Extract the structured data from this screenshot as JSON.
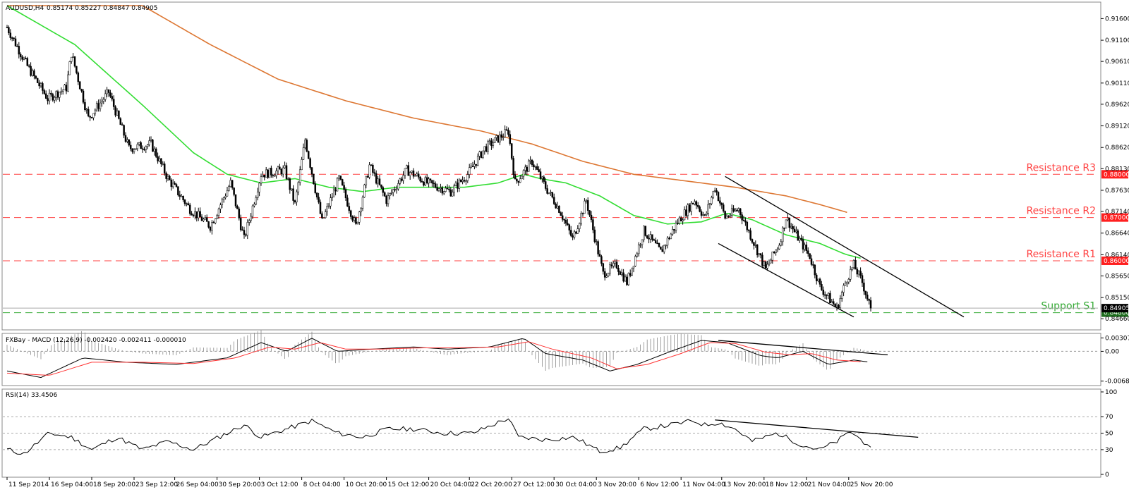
{
  "chart_data": [
    {
      "type": "candlestick",
      "title": "AUDUSD,H4",
      "ohlc_readout": "0.85174 0.85227 0.84847 0.84905",
      "price_axis": {
        "ylim": [
          0.845,
          0.919
        ],
        "ticks": [
          "0.91600",
          "0.91100",
          "0.90610",
          "0.90110",
          "0.89620",
          "0.89120",
          "0.88620",
          "0.88130",
          "0.87630",
          "0.87140",
          "0.86640",
          "0.86140",
          "0.85650",
          "0.85150",
          "0.84660"
        ]
      },
      "x_ticks": [
        "11 Sep 2014",
        "16 Sep 04:00",
        "18 Sep 20:00",
        "23 Sep 12:00",
        "26 Sep 04:00",
        "30 Sep 20:00",
        "3 Oct 12:00",
        "8 Oct 04:00",
        "10 Oct 20:00",
        "15 Oct 12:00",
        "20 Oct 04:00",
        "22 Oct 20:00",
        "27 Oct 12:00",
        "30 Oct 04:00",
        "3 Nov 20:00",
        "6 Nov 12:00",
        "11 Nov 04:00",
        "13 Nov 20:00",
        "18 Nov 12:00",
        "21 Nov 04:00",
        "25 Nov 20:00"
      ],
      "current_price": "0.84905",
      "levels": [
        {
          "name": "Resistance R3",
          "value": 0.88,
          "tag": "0.88000",
          "color": "#ff4040"
        },
        {
          "name": "Resistance R2",
          "value": 0.87,
          "tag": "0.87000",
          "color": "#ff4040"
        },
        {
          "name": "Resistance R1",
          "value": 0.86,
          "tag": "0.86000",
          "color": "#ff4040"
        },
        {
          "name": "Support S1",
          "value": 0.848,
          "tag": "0.84800",
          "color": "#33aa33"
        }
      ],
      "candle_colors": {
        "up": "#ffffff",
        "down": "#000000",
        "wick": "#000000"
      },
      "ma_fast_color": "#33dd33",
      "ma_slow_color": "#dd7733",
      "key_points": [
        [
          0,
          0.914
        ],
        [
          12,
          0.905
        ],
        [
          24,
          0.8975
        ],
        [
          35,
          0.9
        ],
        [
          38,
          0.908
        ],
        [
          48,
          0.893
        ],
        [
          60,
          0.899
        ],
        [
          72,
          0.886
        ],
        [
          85,
          0.887
        ],
        [
          95,
          0.879
        ],
        [
          108,
          0.872
        ],
        [
          120,
          0.868
        ],
        [
          132,
          0.878
        ],
        [
          140,
          0.865
        ],
        [
          150,
          0.88
        ],
        [
          164,
          0.881
        ],
        [
          170,
          0.873
        ],
        [
          176,
          0.888
        ],
        [
          186,
          0.869
        ],
        [
          196,
          0.879
        ],
        [
          206,
          0.868
        ],
        [
          214,
          0.882
        ],
        [
          224,
          0.874
        ],
        [
          236,
          0.881
        ],
        [
          248,
          0.878
        ],
        [
          262,
          0.876
        ],
        [
          272,
          0.88
        ],
        [
          282,
          0.886
        ],
        [
          296,
          0.89
        ],
        [
          300,
          0.878
        ],
        [
          310,
          0.883
        ],
        [
          318,
          0.877
        ],
        [
          326,
          0.872
        ],
        [
          334,
          0.865
        ],
        [
          342,
          0.874
        ],
        [
          352,
          0.857
        ],
        [
          360,
          0.859
        ],
        [
          366,
          0.855
        ],
        [
          376,
          0.867
        ],
        [
          386,
          0.862
        ],
        [
          396,
          0.869
        ],
        [
          406,
          0.874
        ],
        [
          412,
          0.87
        ],
        [
          418,
          0.877
        ],
        [
          424,
          0.87
        ],
        [
          432,
          0.872
        ],
        [
          440,
          0.865
        ],
        [
          448,
          0.858
        ],
        [
          456,
          0.864
        ],
        [
          460,
          0.87
        ],
        [
          466,
          0.866
        ],
        [
          474,
          0.861
        ],
        [
          480,
          0.854
        ],
        [
          486,
          0.851
        ],
        [
          490,
          0.849
        ],
        [
          496,
          0.856
        ],
        [
          500,
          0.859
        ],
        [
          505,
          0.855
        ],
        [
          510,
          0.849
        ]
      ],
      "ma_fast_points": [
        [
          0,
          0.919
        ],
        [
          40,
          0.91
        ],
        [
          80,
          0.896
        ],
        [
          110,
          0.885
        ],
        [
          130,
          0.88
        ],
        [
          150,
          0.878
        ],
        [
          170,
          0.879
        ],
        [
          190,
          0.877
        ],
        [
          210,
          0.876
        ],
        [
          230,
          0.877
        ],
        [
          250,
          0.877
        ],
        [
          270,
          0.877
        ],
        [
          290,
          0.878
        ],
        [
          305,
          0.88
        ],
        [
          315,
          0.879
        ],
        [
          330,
          0.878
        ],
        [
          350,
          0.875
        ],
        [
          370,
          0.8705
        ],
        [
          390,
          0.8685
        ],
        [
          410,
          0.869
        ],
        [
          425,
          0.871
        ],
        [
          440,
          0.8695
        ],
        [
          460,
          0.866
        ],
        [
          480,
          0.864
        ],
        [
          495,
          0.8615
        ],
        [
          505,
          0.8605
        ]
      ],
      "ma_slow_points": [
        [
          0,
          0.928
        ],
        [
          40,
          0.925
        ],
        [
          80,
          0.919
        ],
        [
          120,
          0.91
        ],
        [
          160,
          0.902
        ],
        [
          200,
          0.897
        ],
        [
          240,
          0.893
        ],
        [
          280,
          0.89
        ],
        [
          310,
          0.887
        ],
        [
          340,
          0.883
        ],
        [
          370,
          0.88
        ],
        [
          400,
          0.8785
        ],
        [
          430,
          0.877
        ],
        [
          460,
          0.875
        ],
        [
          480,
          0.873
        ],
        [
          496,
          0.8712
        ]
      ],
      "channel": [
        [
          [
            424,
            0.8795
          ],
          [
            565,
            0.847
          ]
        ],
        [
          [
            420,
            0.864
          ],
          [
            500,
            0.847
          ]
        ]
      ],
      "bar_count": 511
    },
    {
      "type": "line",
      "title": "FXBay - MACD (12,26,9) -0.002420 -0.002411 -0.000010",
      "ylim": [
        -0.0072,
        0.0033
      ],
      "ticks": [
        "0.00307",
        "0.00",
        "-0.00682"
      ],
      "series": [
        {
          "name": "MACD",
          "color": "#000000"
        },
        {
          "name": "Signal",
          "color": "#ff3333"
        }
      ],
      "macd_points": [
        [
          0,
          -0.0045
        ],
        [
          20,
          -0.006
        ],
        [
          45,
          -0.0015
        ],
        [
          70,
          -0.0025
        ],
        [
          100,
          -0.003
        ],
        [
          130,
          -0.0015
        ],
        [
          150,
          0.002
        ],
        [
          165,
          0.0
        ],
        [
          180,
          0.003
        ],
        [
          195,
          0.0
        ],
        [
          215,
          0.0005
        ],
        [
          240,
          0.001
        ],
        [
          260,
          0.0005
        ],
        [
          285,
          0.001
        ],
        [
          305,
          0.003
        ],
        [
          318,
          -0.0005
        ],
        [
          340,
          -0.002
        ],
        [
          356,
          -0.0045
        ],
        [
          372,
          -0.003
        ],
        [
          392,
          0.0
        ],
        [
          410,
          0.0025
        ],
        [
          425,
          0.002
        ],
        [
          445,
          -0.001
        ],
        [
          455,
          -0.0015
        ],
        [
          470,
          0.0
        ],
        [
          485,
          -0.003
        ],
        [
          500,
          -0.002
        ],
        [
          508,
          -0.0024
        ]
      ],
      "signal_points": [
        [
          0,
          -0.005
        ],
        [
          25,
          -0.0055
        ],
        [
          50,
          -0.0025
        ],
        [
          80,
          -0.0025
        ],
        [
          110,
          -0.0028
        ],
        [
          135,
          -0.0015
        ],
        [
          155,
          0.001
        ],
        [
          170,
          0.0005
        ],
        [
          185,
          0.002
        ],
        [
          200,
          0.0005
        ],
        [
          220,
          0.0005
        ],
        [
          245,
          0.0008
        ],
        [
          265,
          0.0008
        ],
        [
          290,
          0.001
        ],
        [
          308,
          0.0022
        ],
        [
          322,
          0.0005
        ],
        [
          345,
          -0.0015
        ],
        [
          360,
          -0.004
        ],
        [
          378,
          -0.003
        ],
        [
          398,
          -0.0005
        ],
        [
          415,
          0.002
        ],
        [
          430,
          0.0018
        ],
        [
          448,
          -0.0002
        ],
        [
          462,
          -0.0008
        ],
        [
          475,
          -0.0005
        ],
        [
          490,
          -0.002
        ],
        [
          505,
          -0.0024
        ]
      ],
      "trendline": [
        [
          420,
          0.0025
        ],
        [
          520,
          -0.0008
        ]
      ]
    },
    {
      "type": "line",
      "title": "RSI(14) 33.4506",
      "ylim": [
        0,
        100
      ],
      "ticks": [
        "100",
        "70",
        "50",
        "30",
        "0"
      ],
      "series": [
        {
          "name": "RSI",
          "color": "#000000"
        }
      ],
      "rsi_points": [
        [
          0,
          30
        ],
        [
          10,
          25
        ],
        [
          25,
          50
        ],
        [
          38,
          45
        ],
        [
          50,
          30
        ],
        [
          65,
          45
        ],
        [
          80,
          30
        ],
        [
          95,
          40
        ],
        [
          110,
          30
        ],
        [
          125,
          45
        ],
        [
          140,
          60
        ],
        [
          150,
          45
        ],
        [
          165,
          55
        ],
        [
          180,
          65
        ],
        [
          195,
          50
        ],
        [
          210,
          45
        ],
        [
          225,
          55
        ],
        [
          240,
          55
        ],
        [
          258,
          50
        ],
        [
          275,
          50
        ],
        [
          296,
          68
        ],
        [
          302,
          45
        ],
        [
          318,
          42
        ],
        [
          335,
          45
        ],
        [
          350,
          28
        ],
        [
          362,
          32
        ],
        [
          376,
          55
        ],
        [
          392,
          60
        ],
        [
          405,
          65
        ],
        [
          412,
          60
        ],
        [
          420,
          63
        ],
        [
          430,
          55
        ],
        [
          440,
          40
        ],
        [
          455,
          50
        ],
        [
          470,
          35
        ],
        [
          480,
          30
        ],
        [
          490,
          40
        ],
        [
          498,
          52
        ],
        [
          510,
          33
        ]
      ],
      "trendline": [
        [
          418,
          66
        ],
        [
          538,
          45
        ]
      ]
    }
  ]
}
